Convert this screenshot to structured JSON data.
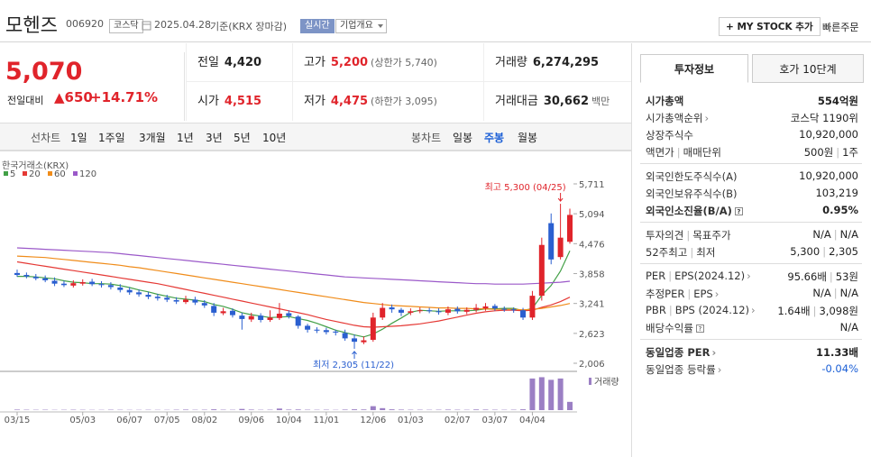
{
  "header": {
    "name": "모헨즈",
    "code": "006920",
    "market": "코스닥",
    "date": "2025.04.28",
    "basis": "기준(KRX 장마감)",
    "realtime": "실시간",
    "company": "기업개요",
    "mystock": "+ MY STOCK 추가",
    "quick_order": "빠른주문"
  },
  "price": {
    "current": "5,070",
    "change_caption": "전일대비",
    "change": "▲650",
    "change_pct": "+14.71%"
  },
  "summary": [
    [
      {
        "label": "전일",
        "value": "4,420"
      },
      {
        "label": "고가",
        "value": "5,200",
        "note": "(상한가 5,740)",
        "red": true
      },
      {
        "label": "거래량",
        "value": "6,274,295"
      }
    ],
    [
      {
        "label": "시가",
        "value": "4,515",
        "red": true
      },
      {
        "label": "저가",
        "value": "4,475",
        "note": "(하한가 3,095)",
        "red": true
      },
      {
        "label": "거래대금",
        "value": "30,662",
        "note": "백만"
      }
    ]
  ],
  "period_tabs": {
    "line": "선차트",
    "line_items": [
      "1일",
      "1주일",
      "3개월",
      "1년",
      "3년",
      "5년",
      "10년"
    ],
    "candle": "봉차트",
    "candle_items": [
      "일봉",
      "주봉",
      "월봉"
    ],
    "selected_index": 1
  },
  "invest": {
    "tabs": [
      "투자정보",
      "호가 10단계"
    ],
    "groups": [
      [
        {
          "label": [
            "시가총액"
          ],
          "value": [
            "554억원"
          ],
          "strong": true
        },
        {
          "label": [
            "시가총액순위"
          ],
          "more": true,
          "value": [
            "코스닥 1190위"
          ]
        },
        {
          "label": [
            "상장주식수"
          ],
          "value": [
            "10,920,000"
          ]
        },
        {
          "label": [
            "액면가",
            "매매단위"
          ],
          "value": [
            "500원",
            "1주"
          ]
        }
      ],
      [
        {
          "label": [
            "외국인한도주식수(A)"
          ],
          "value": [
            "10,920,000"
          ]
        },
        {
          "label": [
            "외국인보유주식수(B)"
          ],
          "value": [
            "103,219"
          ]
        },
        {
          "label": [
            "외국인소진율(B/A)"
          ],
          "help": true,
          "value": [
            "0.95%"
          ],
          "strong": true
        }
      ],
      [
        {
          "label": [
            "투자의견",
            "목표주가"
          ],
          "value": [
            "N/A",
            "N/A"
          ]
        },
        {
          "label": [
            "52주최고",
            "최저"
          ],
          "value": [
            "5,300",
            "2,305"
          ]
        }
      ],
      [
        {
          "label": [
            "PER",
            "EPS(2024.12)"
          ],
          "more": true,
          "value": [
            "95.66배",
            "53원"
          ]
        },
        {
          "label": [
            "추정PER",
            "EPS"
          ],
          "more": true,
          "value": [
            "N/A",
            "N/A"
          ]
        },
        {
          "label": [
            "PBR",
            "BPS (2024.12)"
          ],
          "more": true,
          "value": [
            "1.64배",
            "3,098원"
          ]
        },
        {
          "label": [
            "배당수익률"
          ],
          "help": true,
          "value": [
            "N/A"
          ]
        }
      ],
      [
        {
          "label": [
            "동일업종 PER"
          ],
          "more": true,
          "value": [
            "11.33배"
          ],
          "strong": true
        },
        {
          "label": [
            "동일업종 등락률"
          ],
          "more": true,
          "value": [
            "-0.04%"
          ],
          "color": "#1b5fd6"
        }
      ]
    ]
  },
  "chart_data": {
    "type": "candlestick",
    "source": "한국거래소(KRX)",
    "categories": [
      "03/15",
      null,
      null,
      null,
      null,
      null,
      null,
      "05/03",
      null,
      null,
      null,
      null,
      "06/07",
      null,
      null,
      null,
      "07/05",
      null,
      null,
      null,
      "08/02",
      null,
      null,
      null,
      null,
      "09/06",
      null,
      null,
      null,
      "10/04",
      null,
      null,
      null,
      "11/01",
      null,
      null,
      null,
      null,
      "12/06",
      null,
      null,
      null,
      "01/03",
      null,
      null,
      null,
      null,
      "02/07",
      null,
      null,
      null,
      "03/07",
      null,
      null,
      null,
      "04/04",
      null,
      null,
      null,
      null
    ],
    "open": [
      3870,
      3830,
      3790,
      3760,
      3710,
      3650,
      3610,
      3650,
      3690,
      3640,
      3620,
      3570,
      3520,
      3470,
      3420,
      3380,
      3360,
      3310,
      3270,
      3320,
      3250,
      3190,
      3040,
      3090,
      2990,
      2910,
      2990,
      2900,
      2940,
      3040,
      2970,
      2780,
      2700,
      2690,
      2660,
      2630,
      2520,
      2440,
      2490,
      2950,
      3160,
      3110,
      3050,
      3090,
      3100,
      3080,
      3050,
      3130,
      3070,
      3110,
      3140,
      3190,
      3130,
      3120,
      3100,
      2950,
      3400,
      4900,
      4200,
      4515
    ],
    "high": [
      3940,
      3880,
      3850,
      3820,
      3780,
      3710,
      3720,
      3740,
      3750,
      3700,
      3680,
      3640,
      3580,
      3530,
      3480,
      3440,
      3420,
      3370,
      3400,
      3380,
      3310,
      3250,
      3150,
      3140,
      3050,
      3050,
      3040,
      3100,
      3250,
      3100,
      3000,
      2820,
      2750,
      2740,
      2700,
      2700,
      2600,
      2560,
      3050,
      3250,
      3220,
      3150,
      3140,
      3160,
      3150,
      3140,
      3180,
      3180,
      3160,
      3230,
      3250,
      3230,
      3180,
      3160,
      3150,
      3500,
      4600,
      5100,
      5300,
      5200
    ],
    "low": [
      3790,
      3760,
      3720,
      3680,
      3600,
      3580,
      3570,
      3610,
      3600,
      3570,
      3530,
      3470,
      3420,
      3380,
      3330,
      3300,
      3270,
      3230,
      3230,
      3210,
      3150,
      2980,
      3000,
      2950,
      2700,
      2860,
      2850,
      2860,
      2900,
      2930,
      2720,
      2640,
      2630,
      2600,
      2580,
      2470,
      2305,
      2400,
      2450,
      2900,
      3050,
      2980,
      3000,
      3040,
      3040,
      3010,
      3000,
      3030,
      3020,
      3060,
      3090,
      3090,
      3070,
      3050,
      2900,
      2900,
      3300,
      4050,
      4150,
      4475
    ],
    "close": [
      3830,
      3800,
      3760,
      3720,
      3650,
      3620,
      3660,
      3680,
      3640,
      3620,
      3580,
      3520,
      3470,
      3430,
      3380,
      3350,
      3320,
      3280,
      3320,
      3260,
      3200,
      3050,
      3080,
      3000,
      2920,
      2980,
      2900,
      2950,
      3030,
      2980,
      2780,
      2700,
      2680,
      2650,
      2640,
      2520,
      2450,
      2480,
      2950,
      3150,
      3120,
      3050,
      3080,
      3100,
      3090,
      3060,
      3120,
      3080,
      3110,
      3150,
      3180,
      3140,
      3120,
      3100,
      2950,
      3400,
      4450,
      4150,
      4600,
      5070
    ],
    "up_color": "#e0242b",
    "down_color": "#2a5fd0",
    "series": [
      {
        "name": "5",
        "color": "#43a047",
        "values": [
          3800,
          3800,
          3790,
          3770,
          3750,
          3710,
          3680,
          3670,
          3650,
          3650,
          3640,
          3610,
          3570,
          3520,
          3480,
          3430,
          3390,
          3350,
          3330,
          3310,
          3280,
          3220,
          3180,
          3120,
          3050,
          3010,
          2980,
          2950,
          2960,
          2970,
          2930,
          2890,
          2830,
          2760,
          2690,
          2640,
          2590,
          2550,
          2610,
          2710,
          2830,
          2940,
          3060,
          3100,
          3090,
          3080,
          3090,
          3090,
          3090,
          3100,
          3130,
          3130,
          3140,
          3140,
          3090,
          3140,
          3410,
          3610,
          3910,
          4330
        ]
      },
      {
        "name": "20",
        "color": "#e53935",
        "values": [
          4100,
          4070,
          4040,
          4010,
          3980,
          3950,
          3920,
          3890,
          3860,
          3830,
          3800,
          3770,
          3740,
          3710,
          3680,
          3650,
          3610,
          3570,
          3530,
          3490,
          3450,
          3410,
          3370,
          3330,
          3290,
          3250,
          3210,
          3170,
          3130,
          3090,
          3050,
          3010,
          2960,
          2910,
          2870,
          2830,
          2790,
          2760,
          2750,
          2760,
          2770,
          2780,
          2800,
          2820,
          2850,
          2880,
          2920,
          2960,
          3000,
          3040,
          3070,
          3090,
          3100,
          3100,
          3090,
          3100,
          3160,
          3210,
          3280,
          3370
        ]
      },
      {
        "name": "60",
        "color": "#f08c1a",
        "values": [
          4220,
          4210,
          4200,
          4190,
          4170,
          4150,
          4130,
          4110,
          4090,
          4070,
          4050,
          4030,
          4000,
          3980,
          3950,
          3920,
          3890,
          3860,
          3830,
          3800,
          3770,
          3740,
          3710,
          3680,
          3650,
          3620,
          3590,
          3560,
          3530,
          3500,
          3470,
          3440,
          3410,
          3380,
          3350,
          3320,
          3290,
          3260,
          3240,
          3220,
          3200,
          3190,
          3180,
          3170,
          3160,
          3150,
          3150,
          3140,
          3140,
          3130,
          3130,
          3120,
          3120,
          3120,
          3110,
          3120,
          3140,
          3170,
          3200,
          3240
        ]
      },
      {
        "name": "120",
        "color": "#9b59c9",
        "values": [
          4390,
          4380,
          4370,
          4360,
          4350,
          4340,
          4330,
          4320,
          4310,
          4300,
          4290,
          4270,
          4250,
          4230,
          4210,
          4190,
          4170,
          4150,
          4130,
          4110,
          4090,
          4070,
          4050,
          4030,
          4010,
          3990,
          3970,
          3950,
          3930,
          3910,
          3890,
          3870,
          3850,
          3830,
          3810,
          3790,
          3780,
          3770,
          3760,
          3750,
          3740,
          3730,
          3720,
          3710,
          3700,
          3690,
          3680,
          3670,
          3660,
          3650,
          3650,
          3640,
          3640,
          3640,
          3640,
          3650,
          3660,
          3670,
          3680,
          3700
        ]
      }
    ],
    "volume": {
      "name": "거래량",
      "color": "#9b7fc4",
      "values": [
        400000,
        300000,
        250000,
        300000,
        200000,
        250000,
        300000,
        250000,
        200000,
        200000,
        300000,
        250000,
        200000,
        200000,
        250000,
        200000,
        200000,
        300000,
        400000,
        250000,
        300000,
        600000,
        300000,
        250000,
        900000,
        400000,
        250000,
        300000,
        1200000,
        400000,
        500000,
        300000,
        250000,
        300000,
        200000,
        400000,
        600000,
        500000,
        3000000,
        1500000,
        600000,
        400000,
        300000,
        300000,
        250000,
        300000,
        400000,
        300000,
        250000,
        500000,
        400000,
        300000,
        250000,
        300000,
        600000,
        24000000,
        25000000,
        23000000,
        24000000,
        6274295
      ]
    },
    "volume_ylim": [
      0,
      26000000
    ],
    "ylim": [
      2006,
      5711
    ],
    "yticks": [
      {
        "value": 2006,
        "label": "2,006"
      },
      {
        "value": 2623,
        "label": "2,623"
      },
      {
        "value": 3241,
        "label": "3,241"
      },
      {
        "value": 3858,
        "label": "3,858"
      },
      {
        "value": 4476,
        "label": "4,476"
      },
      {
        "value": 5094,
        "label": "5,094"
      },
      {
        "value": 5711,
        "label": "5,711"
      }
    ],
    "annotations": {
      "high": {
        "label": "최고 5,300 (04/25)",
        "index": 58
      },
      "low": {
        "label": "최저 2,305 (11/22)",
        "index": 36
      }
    }
  }
}
